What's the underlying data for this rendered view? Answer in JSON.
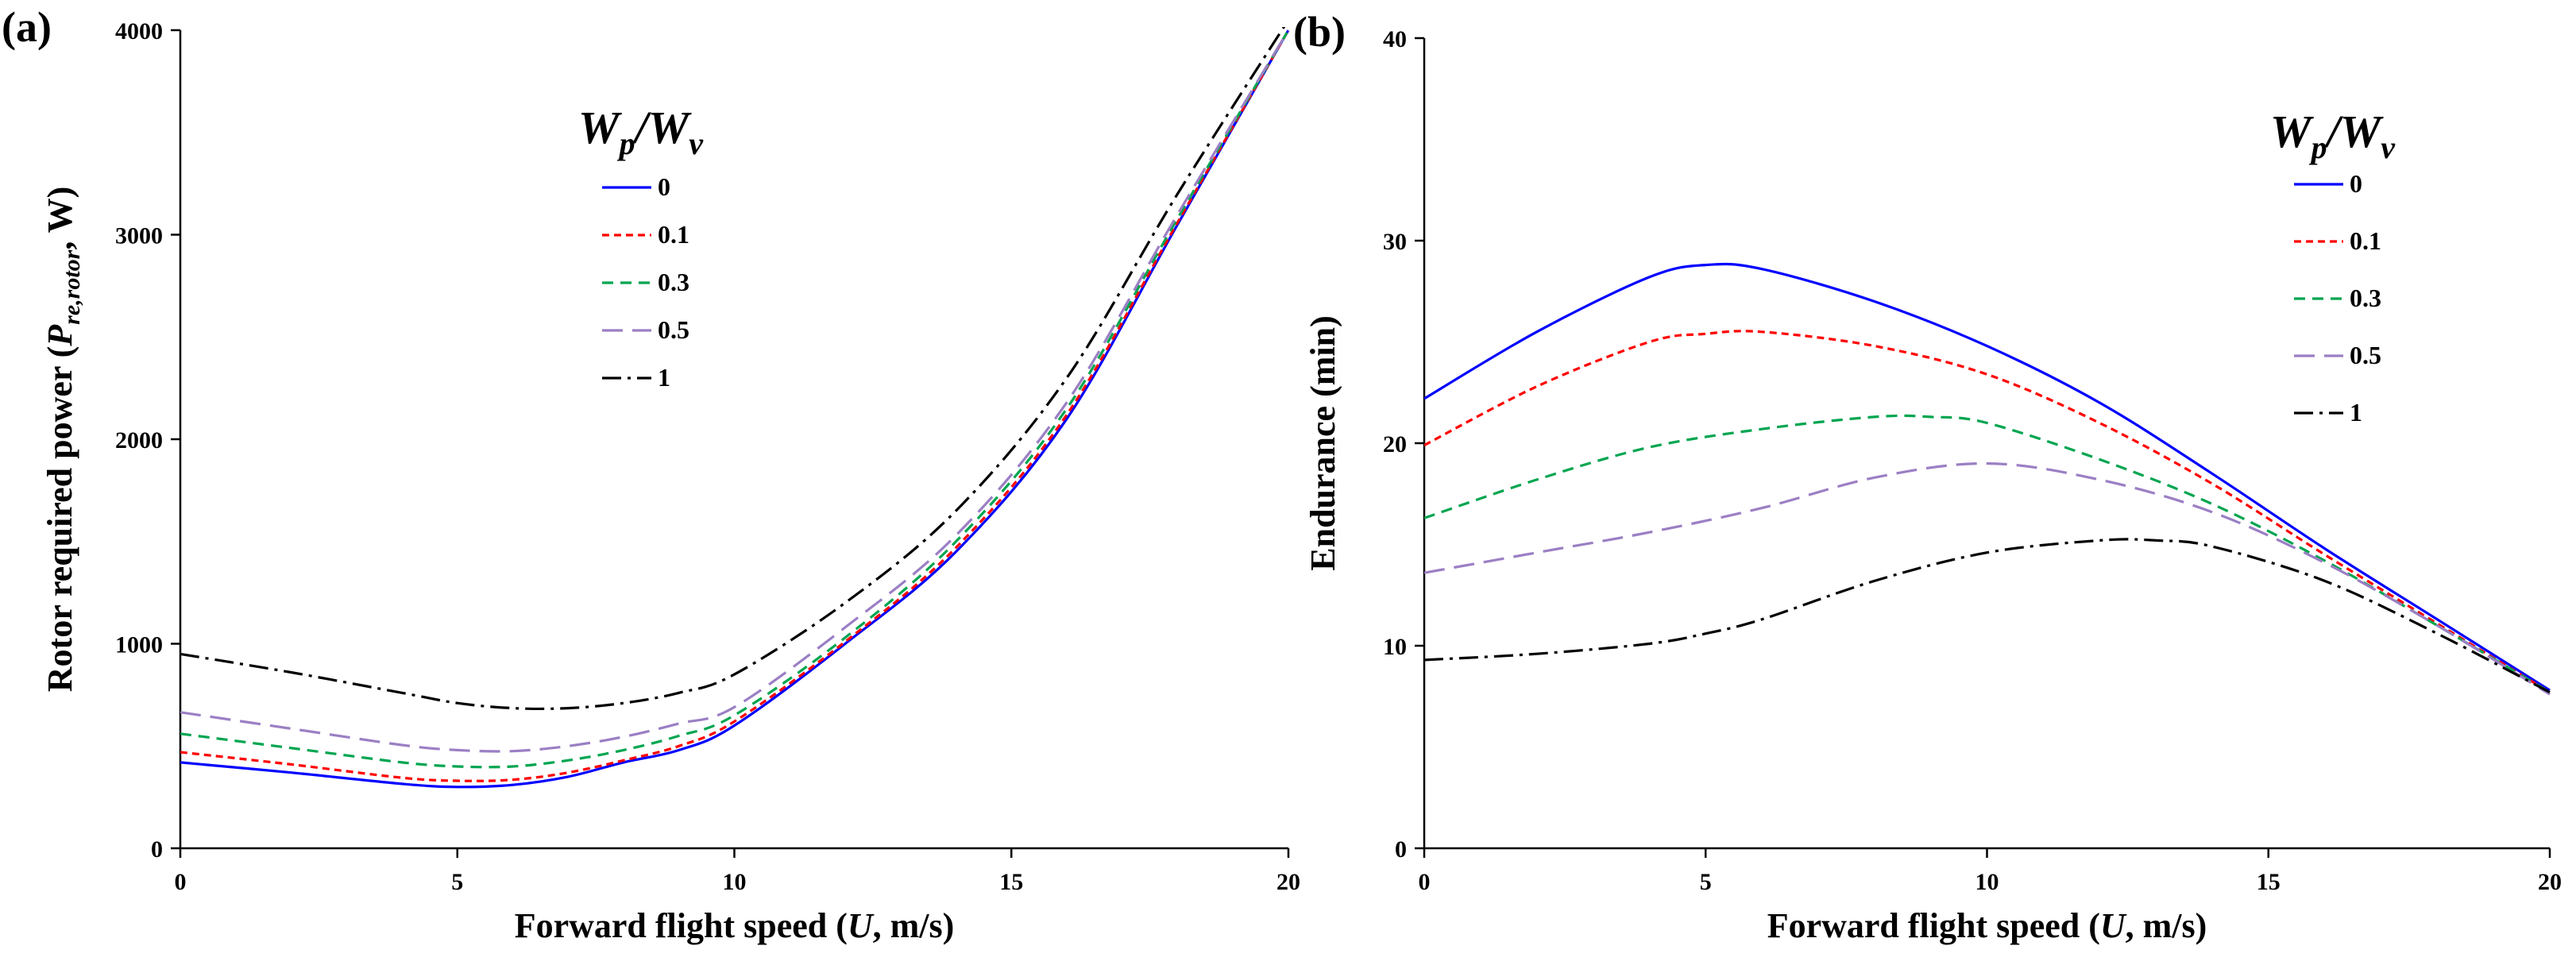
{
  "chart_data": [
    {
      "type": "line",
      "panel_label": "(a)",
      "xlabel": "Forward flight speed (U, m/s)",
      "xlabel_parts": [
        "Forward flight speed (",
        "U",
        ", m/s)"
      ],
      "ylabel": "Rotor required power (P re,rotor, W)",
      "ylabel_parts": [
        "Rotor required power (",
        "P",
        "re,rotor",
        ", W)"
      ],
      "xlim": [
        0,
        20
      ],
      "ylim": [
        0,
        4000
      ],
      "xticks": [
        "0",
        "5",
        "10",
        "15",
        "20"
      ],
      "yticks": [
        "0",
        "1000",
        "2000",
        "3000",
        "4000"
      ],
      "legend_title": {
        "num": "W",
        "num_sub": "p",
        "sep": "/",
        "den": "W",
        "den_sub": "v"
      },
      "legend_position": "upper-center",
      "series": [
        {
          "name": "0",
          "color": "#0000ff",
          "dash": "solid",
          "x": [
            0,
            2,
            4,
            5,
            6,
            7,
            8,
            9,
            10,
            12,
            14,
            16,
            18,
            20
          ],
          "y": [
            420,
            370,
            315,
            300,
            310,
            350,
            420,
            480,
            600,
            1000,
            1450,
            2100,
            3050,
            4000
          ]
        },
        {
          "name": "0.1",
          "color": "#ff0000",
          "dash": "dashed-short",
          "x": [
            0,
            2,
            4,
            5,
            6,
            7,
            8,
            9,
            10,
            12,
            14,
            16,
            18,
            20
          ],
          "y": [
            470,
            410,
            345,
            330,
            335,
            370,
            430,
            500,
            620,
            1010,
            1470,
            2120,
            3060,
            4000
          ]
        },
        {
          "name": "0.3",
          "color": "#00a550",
          "dash": "dashed",
          "x": [
            0,
            2,
            4,
            5,
            6,
            7,
            8,
            9,
            10,
            12,
            14,
            16,
            18,
            20
          ],
          "y": [
            560,
            490,
            420,
            400,
            400,
            430,
            480,
            550,
            650,
            1030,
            1500,
            2150,
            3080,
            4000
          ]
        },
        {
          "name": "0.5",
          "color": "#9b7fc4",
          "dash": "long-dash",
          "x": [
            0,
            2,
            4,
            5,
            6,
            7,
            8,
            9,
            10,
            12,
            14,
            16,
            18,
            20
          ],
          "y": [
            665,
            585,
            505,
            480,
            475,
            500,
            545,
            610,
            690,
            1080,
            1530,
            2180,
            3100,
            4000
          ]
        },
        {
          "name": "1",
          "color": "#000000",
          "dash": "dash-dot",
          "x": [
            0,
            2,
            4,
            5,
            6,
            7,
            8,
            9,
            10,
            12,
            14,
            16,
            18,
            20
          ],
          "y": [
            950,
            860,
            760,
            710,
            685,
            685,
            710,
            760,
            850,
            1200,
            1650,
            2300,
            3200,
            4050
          ]
        }
      ]
    },
    {
      "type": "line",
      "panel_label": "(b)",
      "xlabel": "Forward flight speed (U, m/s)",
      "xlabel_parts": [
        "Forward flight speed (",
        "U",
        ", m/s)"
      ],
      "ylabel": "Endurance (min)",
      "xlim": [
        0,
        20
      ],
      "ylim": [
        0,
        40
      ],
      "xticks": [
        "0",
        "5",
        "10",
        "15",
        "20"
      ],
      "yticks": [
        "0",
        "10",
        "20",
        "30",
        "40"
      ],
      "legend_title": {
        "num": "W",
        "num_sub": "p",
        "sep": "/",
        "den": "W",
        "den_sub": "v"
      },
      "legend_position": "upper-right",
      "series": [
        {
          "name": "0",
          "color": "#0000ff",
          "dash": "solid",
          "x": [
            0,
            2,
            4,
            5,
            6,
            8,
            10,
            12,
            14,
            16,
            18,
            20
          ],
          "y": [
            22.2,
            25.5,
            28.2,
            28.8,
            28.6,
            27.0,
            24.8,
            22.0,
            18.5,
            14.8,
            11.3,
            7.8
          ]
        },
        {
          "name": "0.1",
          "color": "#ff0000",
          "dash": "dashed-short",
          "x": [
            0,
            2,
            4,
            5,
            6,
            8,
            10,
            12,
            14,
            16,
            18,
            20
          ],
          "y": [
            19.9,
            22.8,
            25.0,
            25.4,
            25.5,
            24.8,
            23.4,
            21.0,
            18.0,
            14.5,
            11.1,
            7.7
          ]
        },
        {
          "name": "0.3",
          "color": "#00a550",
          "dash": "dashed",
          "x": [
            0,
            2,
            4,
            6,
            8,
            9,
            10,
            12,
            14,
            16,
            18,
            20
          ],
          "y": [
            16.3,
            18.2,
            19.8,
            20.7,
            21.3,
            21.3,
            21.0,
            19.2,
            17.0,
            14.2,
            11.0,
            7.7
          ]
        },
        {
          "name": "0.5",
          "color": "#9b7fc4",
          "dash": "long-dash",
          "x": [
            0,
            2,
            4,
            6,
            8,
            10,
            12,
            14,
            16,
            18,
            20
          ],
          "y": [
            13.6,
            14.6,
            15.6,
            16.8,
            18.3,
            19.0,
            18.2,
            16.6,
            14.1,
            11.0,
            7.6
          ]
        },
        {
          "name": "1",
          "color": "#000000",
          "dash": "dash-dot",
          "x": [
            0,
            2,
            4,
            5,
            6,
            8,
            10,
            12,
            13,
            14,
            16,
            18,
            20
          ],
          "y": [
            9.3,
            9.6,
            10.1,
            10.6,
            11.3,
            13.2,
            14.6,
            15.2,
            15.2,
            14.9,
            13.2,
            10.6,
            7.7
          ]
        }
      ]
    }
  ]
}
